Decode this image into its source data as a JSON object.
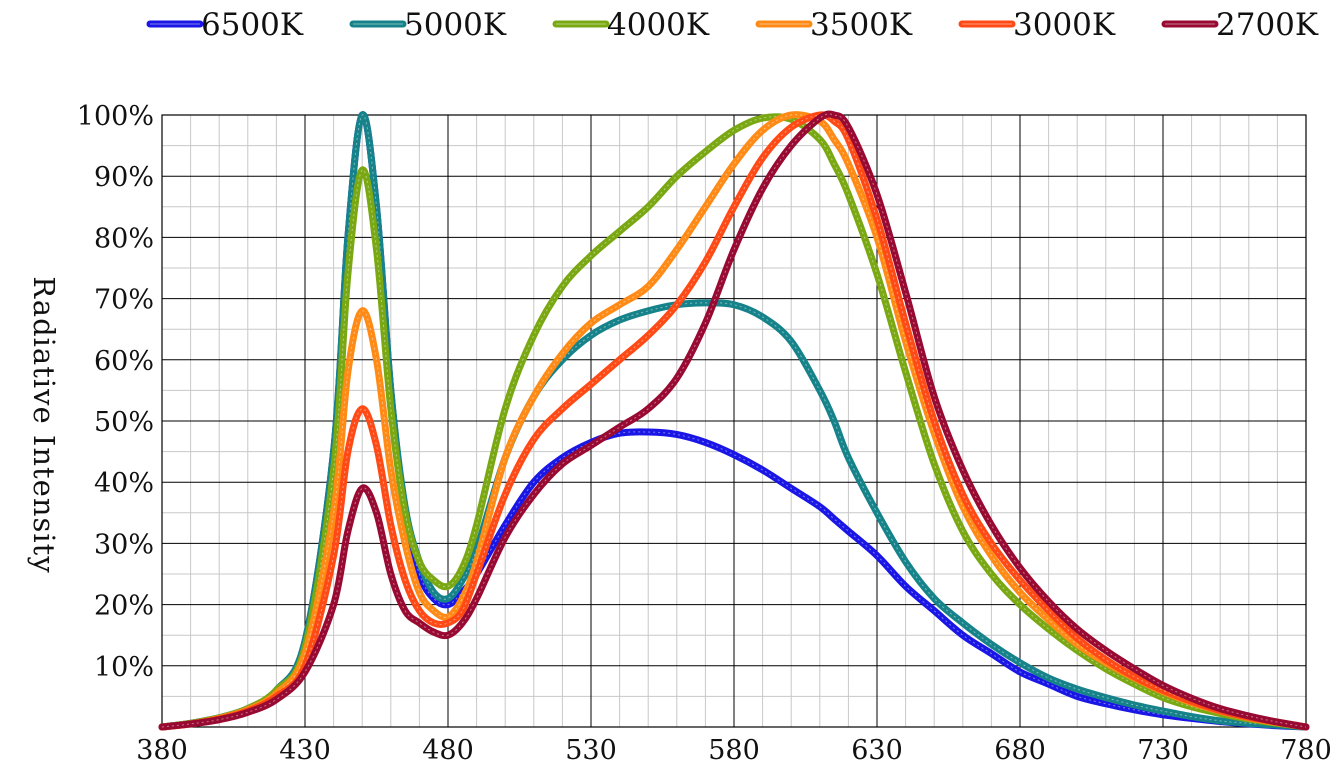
{
  "chart_data": {
    "type": "line",
    "title": "",
    "xlabel": "",
    "ylabel": "Radiative Intensity",
    "xlim": [
      380,
      780
    ],
    "ylim": [
      0,
      100
    ],
    "x_ticks": [
      "380",
      "430",
      "480",
      "530",
      "580",
      "630",
      "680",
      "730",
      "780"
    ],
    "y_ticks": [
      "10%",
      "20%",
      "30%",
      "40%",
      "50%",
      "60%",
      "70%",
      "80%",
      "90%",
      "100%"
    ],
    "grid": true,
    "legend_position": "top",
    "x": [
      380,
      390,
      400,
      410,
      420,
      430,
      440,
      445,
      450,
      455,
      460,
      465,
      470,
      475,
      480,
      485,
      490,
      500,
      510,
      520,
      530,
      540,
      550,
      560,
      570,
      580,
      590,
      600,
      610,
      615,
      620,
      630,
      640,
      650,
      660,
      670,
      680,
      690,
      700,
      710,
      720,
      730,
      740,
      750,
      760,
      770,
      780
    ],
    "series": [
      {
        "name": "6500K",
        "color": "#1a16e6",
        "values": [
          0,
          0.6,
          1.5,
          3,
          6,
          14,
          45,
          80,
          100,
          85,
          55,
          35,
          25,
          21,
          20,
          22,
          25,
          33,
          40,
          44,
          46.5,
          48,
          48.2,
          47.8,
          46.5,
          44.5,
          42,
          39,
          36,
          34,
          32,
          28,
          23,
          19,
          15,
          12,
          9,
          7,
          5,
          3.8,
          2.8,
          2,
          1.4,
          0.9,
          0.5,
          0.2,
          0
        ]
      },
      {
        "name": "5000K",
        "color": "#16838a",
        "values": [
          0,
          0.6,
          1.5,
          3,
          6,
          14,
          45,
          80,
          100,
          85,
          55,
          36,
          27,
          22,
          21,
          24,
          29,
          44,
          54,
          60,
          64,
          66.5,
          68,
          69,
          69.3,
          69,
          67,
          63,
          55,
          50,
          44,
          35,
          27,
          21,
          17,
          13.5,
          10.5,
          8,
          6.2,
          4.8,
          3.6,
          2.6,
          1.7,
          1,
          0.6,
          0.3,
          0
        ]
      },
      {
        "name": "4000K",
        "color": "#7aa813",
        "values": [
          0,
          0.6,
          1.5,
          3,
          6,
          13,
          42,
          74,
          91,
          78,
          52,
          35,
          27,
          24,
          23,
          26,
          33,
          52,
          64,
          72,
          77,
          81,
          85,
          90,
          94,
          97.5,
          99.5,
          99.3,
          96,
          92,
          87,
          74,
          58,
          43,
          32,
          25,
          20,
          16,
          12.5,
          9.5,
          7,
          4.8,
          3.3,
          2.2,
          1.3,
          0.6,
          0
        ]
      },
      {
        "name": "3500K",
        "color": "#ff8a16",
        "values": [
          0,
          0.5,
          1.4,
          2.8,
          5.5,
          12,
          35,
          58,
          68,
          60,
          42,
          30,
          22,
          19,
          18,
          21,
          27,
          44,
          54,
          61,
          66,
          69,
          72,
          78,
          85,
          92,
          97.5,
          100,
          99,
          96,
          92,
          80,
          63,
          48,
          36,
          28,
          22,
          17.5,
          13.5,
          10.5,
          8,
          5.8,
          4,
          2.6,
          1.5,
          0.7,
          0
        ]
      },
      {
        "name": "3000K",
        "color": "#ff4a16",
        "values": [
          0,
          0.5,
          1.3,
          2.6,
          5,
          10,
          28,
          45,
          52,
          46,
          33,
          24,
          19,
          17,
          17,
          19,
          25,
          38,
          47,
          52,
          56,
          60,
          64,
          69,
          76,
          85,
          93,
          98,
          100,
          99,
          96,
          83,
          66,
          50,
          38,
          30,
          24,
          19,
          14.5,
          11,
          8.2,
          6,
          4.2,
          2.7,
          1.6,
          0.8,
          0
        ]
      },
      {
        "name": "2700K",
        "color": "#990a33",
        "values": [
          0,
          0.5,
          1.2,
          2.4,
          4.5,
          9,
          20,
          32,
          39,
          35,
          25,
          19,
          17,
          15.5,
          15,
          17,
          21,
          31,
          38,
          43,
          46,
          49,
          52,
          57,
          66,
          78,
          88,
          95,
          99.5,
          100,
          98,
          87,
          71,
          54,
          42,
          33,
          26,
          20.5,
          16,
          12.5,
          9.5,
          6.8,
          4.7,
          3,
          1.8,
          0.8,
          0
        ]
      }
    ]
  }
}
